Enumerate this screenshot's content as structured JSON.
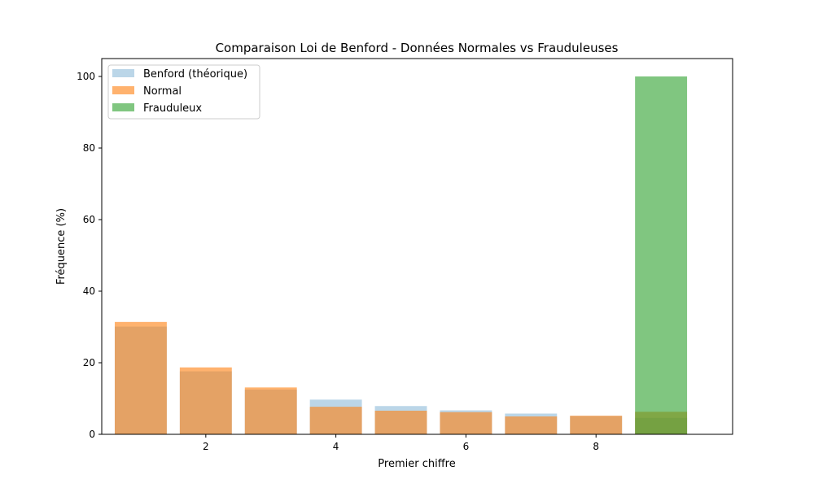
{
  "chart_data": {
    "type": "bar",
    "title": "Comparaison Loi de Benford - Données Normales vs Frauduleuses",
    "xlabel": "Premier chiffre",
    "ylabel": "Fréquence (%)",
    "x_categories": [
      1,
      2,
      3,
      4,
      5,
      6,
      7,
      8,
      9
    ],
    "xlim": [
      0.4,
      10.1
    ],
    "ylim": [
      0,
      105
    ],
    "xticks": [
      2,
      4,
      6,
      8
    ],
    "yticks": [
      0,
      20,
      40,
      60,
      80,
      100
    ],
    "grid": false,
    "legend_position": "top-left",
    "series": [
      {
        "name": "Benford (théorique)",
        "color": "#1f77b4",
        "opacity": 0.3,
        "values": [
          30.1,
          17.6,
          12.5,
          9.7,
          7.9,
          6.7,
          5.8,
          5.1,
          4.6
        ]
      },
      {
        "name": "Normal",
        "color": "#ff7f0e",
        "opacity": 0.6,
        "values": [
          31.4,
          18.7,
          13.1,
          7.7,
          6.6,
          6.2,
          5.0,
          5.2,
          6.3
        ]
      },
      {
        "name": "Frauduleux",
        "color": "#2ca02c",
        "opacity": 0.6,
        "values": [
          0,
          0,
          0,
          0,
          0,
          0,
          0,
          0,
          100
        ]
      }
    ]
  }
}
